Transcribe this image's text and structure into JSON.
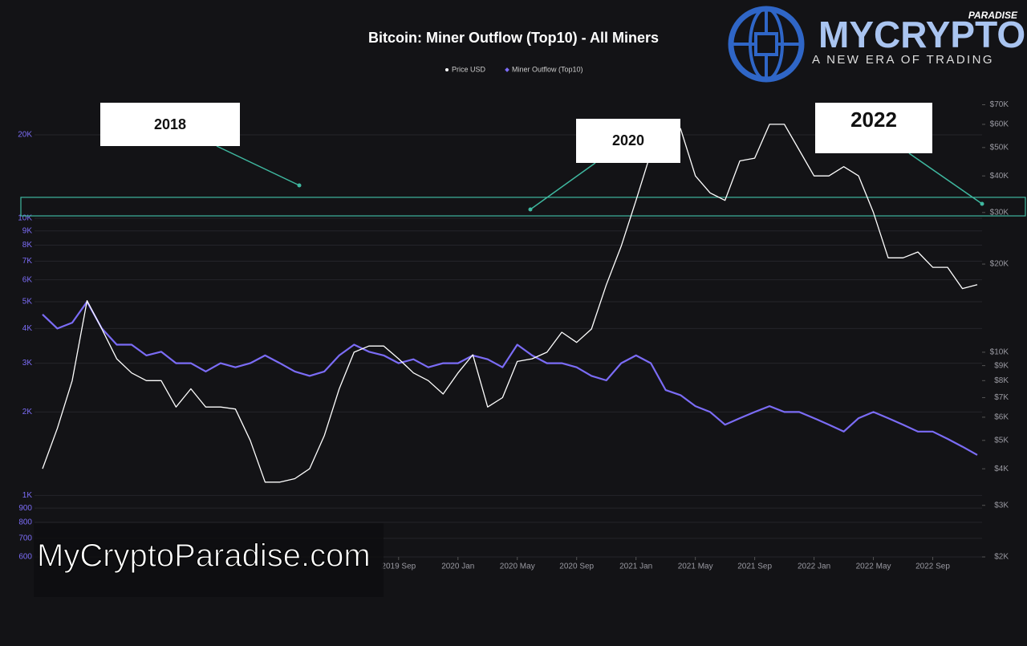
{
  "chart_data": {
    "type": "line",
    "title": "Bitcoin: Miner Outflow (Top10) - All Miners",
    "x": [
      "2017-09",
      "2017-10",
      "2017-11",
      "2017-12",
      "2018-01",
      "2018-02",
      "2018-03",
      "2018-04",
      "2018-05",
      "2018-06",
      "2018-07",
      "2018-08",
      "2018-09",
      "2018-10",
      "2018-11",
      "2018-12",
      "2019-01",
      "2019-02",
      "2019-03",
      "2019-04",
      "2019-05",
      "2019-06",
      "2019-07",
      "2019-08",
      "2019-09",
      "2019-10",
      "2019-11",
      "2019-12",
      "2020-01",
      "2020-02",
      "2020-03",
      "2020-04",
      "2020-05",
      "2020-06",
      "2020-07",
      "2020-08",
      "2020-09",
      "2020-10",
      "2020-11",
      "2020-12",
      "2021-01",
      "2021-02",
      "2021-03",
      "2021-04",
      "2021-05",
      "2021-06",
      "2021-07",
      "2021-08",
      "2021-09",
      "2021-10",
      "2021-11",
      "2021-12",
      "2022-01",
      "2022-02",
      "2022-03",
      "2022-04",
      "2022-05",
      "2022-06",
      "2022-07",
      "2022-08",
      "2022-09",
      "2022-10",
      "2022-11",
      "2022-12"
    ],
    "series": [
      {
        "name": "Price USD",
        "color": "#ffffff",
        "axis": "y2",
        "values": [
          4000,
          5500,
          8000,
          15000,
          12000,
          9500,
          8500,
          8000,
          8000,
          6500,
          7500,
          6500,
          6500,
          6400,
          5000,
          3600,
          3600,
          3700,
          4000,
          5200,
          7500,
          10000,
          10500,
          10500,
          9500,
          8500,
          8000,
          7200,
          8500,
          9800,
          6500,
          7000,
          9300,
          9500,
          10000,
          11700,
          10800,
          12000,
          17000,
          23000,
          33000,
          48000,
          57000,
          58000,
          40000,
          35000,
          33000,
          45000,
          46000,
          60000,
          60000,
          49000,
          40000,
          40000,
          43000,
          40000,
          30000,
          21000,
          21000,
          22000,
          19500,
          19500,
          16500,
          17000
        ]
      },
      {
        "name": "Miner Outflow (Top10)",
        "color": "#7b6cf6",
        "values": [
          4500,
          4000,
          4200,
          5000,
          4000,
          3500,
          3500,
          3200,
          3300,
          3000,
          3000,
          2800,
          3000,
          2900,
          3000,
          3200,
          3000,
          2800,
          2700,
          2800,
          3200,
          3500,
          3300,
          3200,
          3000,
          3100,
          2900,
          3000,
          3000,
          3200,
          3100,
          2900,
          3500,
          3200,
          3000,
          3000,
          2900,
          2700,
          2600,
          3000,
          3200,
          3000,
          2400,
          2300,
          2100,
          2000,
          1800,
          1900,
          2000,
          2100,
          2000,
          2000,
          1900,
          1800,
          1700,
          1900,
          2000,
          1900,
          1800,
          1700,
          1700,
          1600,
          1500,
          1400
        ]
      }
    ],
    "xlim": [
      "2017-09",
      "2022-12"
    ],
    "xticks": [
      {
        "value": "2019-09",
        "label": "2019 Sep"
      },
      {
        "value": "2020-01",
        "label": "2020 Jan"
      },
      {
        "value": "2020-05",
        "label": "2020 May"
      },
      {
        "value": "2020-09",
        "label": "2020 Sep"
      },
      {
        "value": "2021-01",
        "label": "2021 Jan"
      },
      {
        "value": "2021-05",
        "label": "2021 May"
      },
      {
        "value": "2021-09",
        "label": "2021 Sep"
      },
      {
        "value": "2022-01",
        "label": "2022 Jan"
      },
      {
        "value": "2022-05",
        "label": "2022 May"
      },
      {
        "value": "2022-09",
        "label": "2022 Sep"
      }
    ],
    "log_scale": true,
    "ylim": [
      600,
      27000
    ],
    "yticks": [
      600,
      700,
      800,
      900,
      {
        "value": 1000,
        "label": "1K"
      },
      {
        "value": 2000,
        "label": "2K"
      },
      {
        "value": 3000,
        "label": "3K"
      },
      {
        "value": 4000,
        "label": "4K"
      },
      {
        "value": 5000,
        "label": "5K"
      },
      {
        "value": 6000,
        "label": "6K"
      },
      {
        "value": 7000,
        "label": "7K"
      },
      {
        "value": 8000,
        "label": "8K"
      },
      {
        "value": 9000,
        "label": "9K"
      },
      {
        "value": 10000,
        "label": "10K"
      },
      {
        "value": 20000,
        "label": "20K"
      }
    ],
    "y2lim": [
      2000,
      73400
    ],
    "y2ticks": [
      {
        "value": 2000,
        "label": "$2K"
      },
      {
        "value": 3000,
        "label": "$3K"
      },
      {
        "value": 4000,
        "label": "$4K"
      },
      {
        "value": 5000,
        "label": "$5K"
      },
      {
        "value": 6000,
        "label": "$6K"
      },
      {
        "value": 7000,
        "label": "$7K"
      },
      {
        "value": 8000,
        "label": "$8K"
      },
      {
        "value": 9000,
        "label": "$9K"
      },
      {
        "value": 10000,
        "label": "$10K"
      },
      {
        "value": 20000,
        "label": "$20K"
      },
      {
        "value": 30000,
        "label": "$30K"
      },
      {
        "value": 40000,
        "label": "$40K"
      },
      {
        "value": 50000,
        "label": "$50K"
      },
      {
        "value": 60000,
        "label": "$60K"
      },
      {
        "value": 70000,
        "label": "$70K"
      }
    ],
    "grid": true,
    "highlight_band": [
      10200,
      11900
    ],
    "annotations": [
      {
        "text": "2018"
      },
      {
        "text": "2020"
      },
      {
        "text": "2022"
      }
    ]
  },
  "brand": {
    "name": "MYCRYPTO",
    "tag": "PARADISE",
    "slogan": "A NEW ERA OF TRADING"
  },
  "watermark": "MyCryptoParadise.com"
}
